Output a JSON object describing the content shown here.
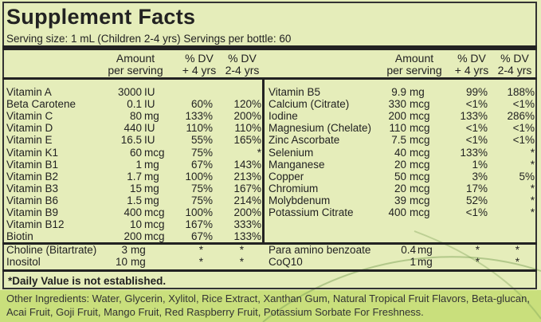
{
  "title": "Supplement Facts",
  "serving": "Serving size: 1 mL (Children 2-4 yrs)  Servings per bottle: 60",
  "headers": {
    "amount1": "Amount",
    "amount2": "per serving",
    "dv4_1": "% DV",
    "dv4_2": "+ 4 yrs",
    "dv24_1": "% DV",
    "dv24_2": "2-4 yrs"
  },
  "left_rows": [
    [
      "Vitamin A",
      "3000",
      "IU",
      "",
      ""
    ],
    [
      "Beta Carotene",
      "0.1",
      "IU",
      "60%",
      "120%"
    ],
    [
      "Vitamin C",
      "80",
      "mg",
      "133%",
      "200%"
    ],
    [
      "Vitamin D",
      "440",
      "IU",
      "110%",
      "110%"
    ],
    [
      "Vitamin E",
      "16.5",
      "IU",
      "55%",
      "165%"
    ],
    [
      "Vitamin K1",
      "60",
      "mcg",
      "75%",
      "*"
    ],
    [
      "Vitamin B1",
      "1",
      "mg",
      "67%",
      "143%"
    ],
    [
      "Vitamin B2",
      "1.7",
      "mg",
      "100%",
      "213%"
    ],
    [
      "Vitamin B3",
      "15",
      "mg",
      "75%",
      "167%"
    ],
    [
      "Vitamin B6",
      "1.5",
      "mg",
      "75%",
      "214%"
    ],
    [
      "Vitamin B9",
      "400",
      "mcg",
      "100%",
      "200%"
    ],
    [
      "Vitamin B12",
      "10",
      "mcg",
      "167%",
      "333%"
    ],
    [
      "Biotin",
      "200",
      "mcg",
      "67%",
      "133%"
    ]
  ],
  "right_rows": [
    [
      "Vitamin B5",
      "9.9",
      "mg",
      "99%",
      "188%"
    ],
    [
      "Calcium (Citrate)",
      "330",
      "mcg",
      "<1%",
      "<1%"
    ],
    [
      "Iodine",
      "200",
      "mcg",
      "133%",
      "286%"
    ],
    [
      "Magnesium (Chelate)",
      "110",
      "mcg",
      "<1%",
      "<1%"
    ],
    [
      "Zinc Ascorbate",
      "7.5",
      "mcg",
      "<1%",
      "<1%"
    ],
    [
      "Selenium",
      "40",
      "mcg",
      "133%",
      "*"
    ],
    [
      "Manganese",
      "20",
      "mcg",
      "1%",
      "*"
    ],
    [
      "Copper",
      "50",
      "mcg",
      "3%",
      "5%"
    ],
    [
      "Chromium",
      "20",
      "mcg",
      "17%",
      "*"
    ],
    [
      "Molybdenum",
      "39",
      "mcg",
      "52%",
      "*"
    ],
    [
      "Potassium Citrate",
      "400",
      "mcg",
      "<1%",
      "*"
    ]
  ],
  "extra_left": [
    [
      "Choline (Bitartrate)",
      "3",
      "mg",
      "*",
      "*"
    ],
    [
      "Inositol",
      "10",
      "mg",
      "*",
      "*"
    ]
  ],
  "extra_right": [
    [
      "Para amino benzoate",
      "0.4",
      "mg",
      "*",
      "*"
    ],
    [
      "CoQ10",
      "1",
      "mg",
      "*",
      "*"
    ]
  ],
  "footnote": "*Daily Value is not established.",
  "other_ingredients": "Other Ingredients: Water, Glycerin, Xylitol, Rice Extract, Xanthan Gum, Natural Tropical Fruit Flavors, Beta-glucan, Acai Fruit, Goji Fruit, Mango Fruit, Red Raspberry Fruit, Potassium Sorbate For Freshness."
}
